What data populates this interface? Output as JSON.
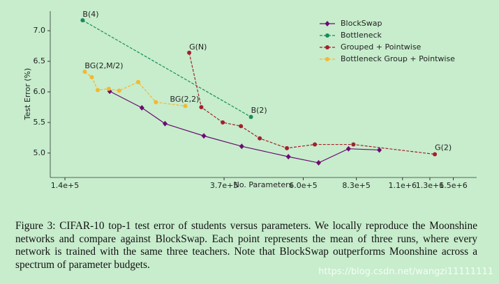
{
  "chart_data": {
    "type": "line",
    "x_label": "No. Parameters",
    "y_label": "Test Error (%)",
    "log_x": true,
    "xlim": [
      128000,
      1730000
    ],
    "xticks": [
      {
        "value": 140000,
        "label": "1.4e+5"
      },
      {
        "value": 370000,
        "label": "3.7e+5"
      },
      {
        "value": 600000,
        "label": "6.0e+5"
      },
      {
        "value": 830000,
        "label": "8.3e+5"
      },
      {
        "value": 1100000,
        "label": "1.1e+6"
      },
      {
        "value": 1300000,
        "label": "1.3e+6"
      },
      {
        "value": 1500000,
        "label": "1.5e+6"
      }
    ],
    "ylim": [
      4.6,
      7.32
    ],
    "yticks": [
      {
        "value": 5,
        "label": "5.0"
      },
      5.5,
      {
        "value": 6,
        "label": "6.0"
      },
      6.5,
      {
        "value": 7,
        "label": "7.0"
      }
    ],
    "legend": "upper right",
    "series": [
      {
        "name": "BlockSwap",
        "color": "#6b0b72",
        "marker": "diamond",
        "linestyle": "solid",
        "x": [
          184000,
          224000,
          258000,
          327000,
          412000,
          548000,
          659000,
          791000,
          955000
        ],
        "values": [
          6.01,
          5.74,
          5.48,
          5.28,
          5.11,
          4.94,
          4.84,
          5.07,
          5.05
        ]
      },
      {
        "name": "Bottleneck",
        "color": "#1a8a5c",
        "marker": "circle",
        "linestyle": "dashed",
        "x": [
          156000,
          436000
        ],
        "values": [
          7.17,
          5.59
        ]
      },
      {
        "name": "Grouped + Pointwise",
        "color": "#a3202c",
        "marker": "circle",
        "linestyle": "dashed",
        "x": [
          299000,
          322000,
          367000,
          410000,
          460000,
          543000,
          644000,
          815000,
          1340000
        ],
        "values": [
          6.64,
          5.75,
          5.5,
          5.44,
          5.24,
          5.08,
          5.14,
          5.14,
          4.98
        ]
      },
      {
        "name": "Bottleneck Group + Pointwise",
        "color": "#f5b730",
        "marker": "circle",
        "linestyle": "dashed",
        "x": [
          158000,
          165000,
          171000,
          183000,
          195000,
          219000,
          244000,
          292000
        ],
        "values": [
          6.33,
          6.24,
          6.03,
          6.05,
          6.02,
          6.16,
          5.83,
          5.77
        ]
      }
    ],
    "annotations": [
      "B(4)",
      "G(N)",
      "BG(2,M/2)",
      "BG(2,2)",
      "B(2)",
      "G(2)"
    ]
  },
  "caption": "Figure 3: CIFAR-10 top-1 test error of students versus parameters. We locally reproduce the Moonshine networks and compare against BlockSwap. Each point represents the mean of three runs, where every network is trained with the same three teachers. Note that BlockSwap outperforms Moonshine across a spectrum of parameter budgets.",
  "watermark": "https://blog.csdn.net/wangzi11111111"
}
